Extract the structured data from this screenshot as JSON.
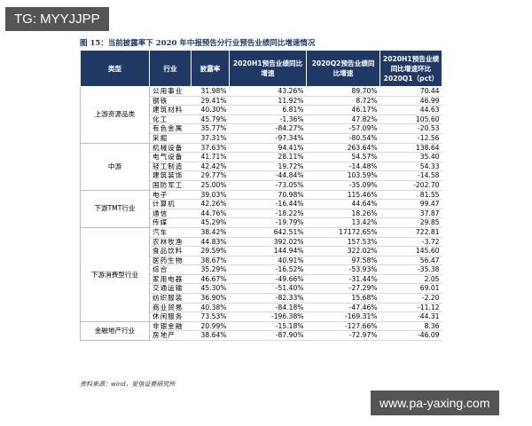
{
  "watermark_top": "TG: MYYJJPP",
  "title": "图 15：当前披露率下 2020 年中报预告分行业预告业绩同比增速情况",
  "table": {
    "headers": [
      "类型",
      "行业",
      "披露率",
      "2020H1预告业绩同比增速",
      "2020Q2预告业绩同比增速",
      "2020H1预告业绩同比增速环比2020Q1（pct）"
    ],
    "groups": [
      {
        "name": "上游资源品类",
        "rows": [
          [
            "公用事业",
            "31.98%",
            "43.26%",
            "89.70%",
            "70.44"
          ],
          [
            "钢铁",
            "29.41%",
            "11.92%",
            "8.72%",
            "46.99"
          ],
          [
            "建筑材料",
            "40.30%",
            "6.81%",
            "46.17%",
            "44.63"
          ],
          [
            "化工",
            "45.79%",
            "-1.36%",
            "47.82%",
            "105.60"
          ],
          [
            "有色金属",
            "35.77%",
            "-84.27%",
            "-57.09%",
            "-20.53"
          ],
          [
            "采掘",
            "37.31%",
            "-97.34%",
            "-80.54%",
            "-12.56"
          ]
        ]
      },
      {
        "name": "中游",
        "rows": [
          [
            "机械设备",
            "37.63%",
            "94.41%",
            "263.64%",
            "138.64"
          ],
          [
            "电气设备",
            "41.71%",
            "28.11%",
            "54.57%",
            "35.40"
          ],
          [
            "轻工制造",
            "42.42%",
            "19.72%",
            "-14.48%",
            "54.33"
          ],
          [
            "建筑装饰",
            "29.77%",
            "-44.84%",
            "103.59%",
            "-14.58"
          ],
          [
            "国防军工",
            "25.00%",
            "-73.05%",
            "-35.09%",
            "-202.70"
          ]
        ]
      },
      {
        "name": "下游TMT行业",
        "rows": [
          [
            "电子",
            "39.03%",
            "70.98%",
            "115.46%",
            "81.55"
          ],
          [
            "计算机",
            "42.26%",
            "-16.44%",
            "44.64%",
            "99.47"
          ],
          [
            "通信",
            "44.76%",
            "-18.22%",
            "18.26%",
            "37.87"
          ],
          [
            "传媒",
            "45.29%",
            "-19.79%",
            "13.42%",
            "29.85"
          ]
        ]
      },
      {
        "name": "下游消费型行业",
        "rows": [
          [
            "汽车",
            "38.42%",
            "642.51%",
            "17172.65%",
            "722.81"
          ],
          [
            "农林牧渔",
            "44.83%",
            "392.02%",
            "157.53%",
            "-3.72"
          ],
          [
            "食品饮料",
            "29.59%",
            "144.94%",
            "322.02%",
            "145.60"
          ],
          [
            "医药生物",
            "38.67%",
            "40.91%",
            "97.58%",
            "56.47"
          ],
          [
            "综合",
            "35.29%",
            "-16.52%",
            "-53.93%",
            "-35.38"
          ],
          [
            "家用电器",
            "46.67%",
            "-49.66%",
            "-31.44%",
            "2.05"
          ],
          [
            "交通运输",
            "45.30%",
            "-51.40%",
            "-27.29%",
            "69.01"
          ],
          [
            "纺织服装",
            "36.90%",
            "-82.33%",
            "15.68%",
            "-2.20"
          ],
          [
            "商业贸易",
            "40.38%",
            "-84.18%",
            "-47.46%",
            "-11.12"
          ],
          [
            "休闲服务",
            "73.53%",
            "-196.38%",
            "-169.31%",
            "-44.31"
          ]
        ]
      },
      {
        "name": "金融地产行业",
        "rows": [
          [
            "非银金融",
            "20.99%",
            "-15.18%",
            "-127.66%",
            "8.36"
          ],
          [
            "房地产",
            "38.64%",
            "-87.90%",
            "-72.97%",
            "-46.09"
          ]
        ]
      }
    ]
  },
  "source": "资料来源：wind，安信证券研究所",
  "watermark_bottom": "www.pa-yaxing.com"
}
